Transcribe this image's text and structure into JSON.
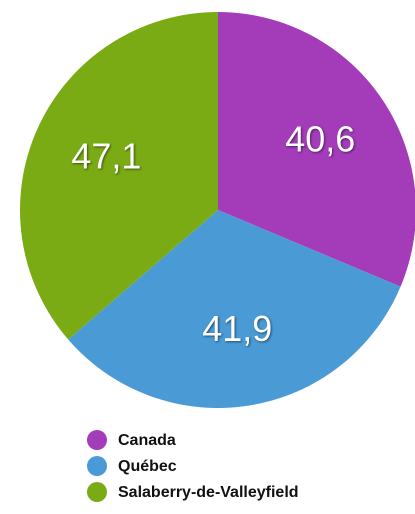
{
  "chart_data": {
    "type": "pie",
    "categories": [
      "Canada",
      "Québec",
      "Salaberry-de-Valleyfield"
    ],
    "values": [
      40.6,
      41.9,
      47.1
    ],
    "value_labels": [
      "40,6",
      "41,9",
      "47,1"
    ],
    "colors": [
      "#a43cba",
      "#4a9ad6",
      "#7aab14"
    ]
  }
}
